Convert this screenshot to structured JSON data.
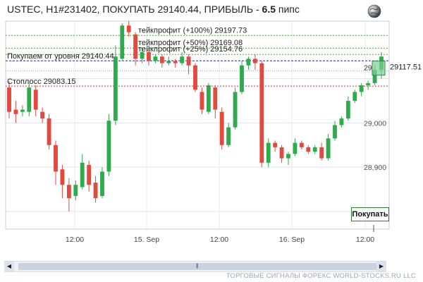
{
  "title": {
    "prefix": "USTEC, H1#231402, ПОКУПАТЬ 29140.44, ПРИБЫЛЬ - ",
    "profit": "6.5",
    "suffix": " пипс"
  },
  "levels": [
    {
      "label": "тейкпрофит (+100%) 29197.73",
      "price": 29197.73,
      "color": "#5aa03c",
      "dash": "2,2"
    },
    {
      "label": "тейкпрофит (+50%) 29169.08",
      "price": 29169.08,
      "color": "#5aa03c",
      "dash": "2,2"
    },
    {
      "label": "тейкпрофит (+25%) 29154.76",
      "price": 29154.76,
      "color": "#5aa03c",
      "dash": "2,2"
    },
    {
      "label": "Покупаем от уровня 29140.44",
      "price": 29140.44,
      "color": "#1c2fa0",
      "dash": "3,2"
    },
    {
      "label": "Стоплосс 29083.15",
      "price": 29083.15,
      "color": "#d23c3c",
      "dash": "2,2"
    }
  ],
  "current_price_label": "29117.51",
  "current_price": 29117.51,
  "price_box_label": "29",
  "y_ticks": [
    "29,000",
    "28,900",
    "28,800"
  ],
  "x_ticks": [
    "12:00",
    "15. Sep",
    "12:00",
    "16. Sep",
    "12:00"
  ],
  "buy_button": "Покупать",
  "footer": "ТОРГОВЫЕ СИГНАЛЫ ФОРЕКС WORLD-STOCKS.RU LLC",
  "colors": {
    "bull": "#2faa4d",
    "bear": "#e04a3f"
  },
  "chart_data": {
    "type": "candlestick",
    "ylim": [
      28760,
      29230
    ],
    "candles": [
      [
        29080,
        29025,
        29095,
        29010
      ],
      [
        29030,
        29020,
        29050,
        29000
      ],
      [
        29025,
        29030,
        29040,
        29015
      ],
      [
        29025,
        29080,
        29090,
        29015
      ],
      [
        29075,
        29030,
        29085,
        29015
      ],
      [
        29025,
        29010,
        29035,
        29000
      ],
      [
        29010,
        28950,
        29020,
        28940
      ],
      [
        28950,
        28890,
        28960,
        28860
      ],
      [
        28895,
        28860,
        28905,
        28830
      ],
      [
        28860,
        28830,
        28875,
        28800
      ],
      [
        28835,
        28860,
        28870,
        28825
      ],
      [
        28855,
        28910,
        28930,
        28850
      ],
      [
        28905,
        28860,
        28915,
        28845
      ],
      [
        28865,
        28830,
        28880,
        28820
      ],
      [
        28835,
        28890,
        28900,
        28830
      ],
      [
        28890,
        29005,
        29020,
        28880
      ],
      [
        29005,
        29150,
        29175,
        28995
      ],
      [
        29145,
        29220,
        29225,
        29140
      ],
      [
        29220,
        29205,
        29230,
        29195
      ],
      [
        29200,
        29145,
        29205,
        29130
      ],
      [
        29145,
        29160,
        29170,
        29135
      ],
      [
        29160,
        29140,
        29165,
        29130
      ],
      [
        29140,
        29150,
        29155,
        29135
      ],
      [
        29150,
        29135,
        29155,
        29125
      ],
      [
        29135,
        29140,
        29150,
        29130
      ],
      [
        29140,
        29135,
        29145,
        29125
      ],
      [
        29135,
        29150,
        29160,
        29130
      ],
      [
        29150,
        29130,
        29155,
        29110
      ],
      [
        29130,
        29075,
        29135,
        29070
      ],
      [
        29070,
        29030,
        29080,
        29020
      ],
      [
        29025,
        29085,
        29090,
        29020
      ],
      [
        29080,
        29030,
        29085,
        29010
      ],
      [
        29025,
        28950,
        29035,
        28940
      ],
      [
        28950,
        28990,
        29000,
        28945
      ],
      [
        28990,
        29070,
        29080,
        28985
      ],
      [
        29070,
        29130,
        29140,
        29065
      ],
      [
        29130,
        29145,
        29150,
        29120
      ],
      [
        29145,
        29135,
        29155,
        29120
      ],
      [
        29135,
        28910,
        29140,
        28900
      ],
      [
        28910,
        28955,
        28965,
        28900
      ],
      [
        28955,
        28945,
        28960,
        28935
      ],
      [
        28945,
        28920,
        28950,
        28910
      ],
      [
        28920,
        28930,
        28935,
        28905
      ],
      [
        28930,
        28955,
        28965,
        28925
      ],
      [
        28955,
        28945,
        28960,
        28940
      ],
      [
        28945,
        28935,
        28950,
        28930
      ],
      [
        28935,
        28945,
        28950,
        28930
      ],
      [
        28945,
        28920,
        28955,
        28915
      ],
      [
        28920,
        28965,
        28975,
        28915
      ],
      [
        28965,
        28995,
        29005,
        28960
      ],
      [
        28995,
        29010,
        29015,
        28990
      ],
      [
        29010,
        29050,
        29060,
        29005
      ],
      [
        29050,
        29070,
        29075,
        29045
      ],
      [
        29070,
        29085,
        29090,
        29060
      ],
      [
        29085,
        29090,
        29095,
        29075
      ],
      [
        29090,
        29120,
        29130,
        29085
      ],
      [
        29120,
        29150,
        29160,
        29100
      ]
    ]
  }
}
